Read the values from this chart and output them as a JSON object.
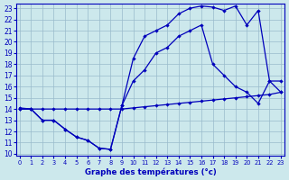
{
  "title": "Graphe des températures (°c)",
  "bg_color": "#cce8ec",
  "line_color": "#0000bb",
  "grid_color": "#99bbcc",
  "xlim": [
    -0.3,
    23.3
  ],
  "ylim": [
    9.8,
    23.4
  ],
  "xticks": [
    0,
    1,
    2,
    3,
    4,
    5,
    6,
    7,
    8,
    9,
    10,
    11,
    12,
    13,
    14,
    15,
    16,
    17,
    18,
    19,
    20,
    21,
    22,
    23
  ],
  "yticks": [
    10,
    11,
    12,
    13,
    14,
    15,
    16,
    17,
    18,
    19,
    20,
    21,
    22,
    23
  ],
  "line1_x": [
    0,
    1,
    2,
    3,
    4,
    5,
    6,
    7,
    8,
    9,
    10,
    11,
    12,
    13,
    14,
    15,
    16,
    17,
    18,
    19,
    20,
    21,
    22,
    23
  ],
  "line1_y": [
    14.0,
    14.0,
    14.0,
    14.0,
    14.0,
    14.0,
    14.0,
    14.0,
    14.0,
    14.0,
    14.1,
    14.2,
    14.3,
    14.4,
    14.5,
    14.6,
    14.7,
    14.8,
    14.9,
    15.0,
    15.1,
    15.2,
    15.3,
    15.5
  ],
  "line2_x": [
    0,
    1,
    2,
    3,
    4,
    5,
    6,
    7,
    8,
    9,
    10,
    11,
    12,
    13,
    14,
    15,
    16,
    17,
    18,
    19,
    20,
    21,
    22,
    23
  ],
  "line2_y": [
    14.0,
    14.0,
    13.0,
    13.0,
    12.2,
    11.5,
    11.2,
    10.5,
    10.4,
    14.3,
    16.5,
    17.5,
    19.0,
    19.5,
    20.5,
    21.0,
    21.5,
    18.0,
    17.0,
    16.0,
    15.5,
    14.5,
    16.5,
    16.5
  ],
  "line3_x": [
    0,
    1,
    2,
    3,
    4,
    5,
    6,
    7,
    8,
    9,
    10,
    11,
    12,
    13,
    14,
    15,
    16,
    17,
    18,
    19,
    20,
    21,
    22,
    23
  ],
  "line3_y": [
    14.1,
    14.0,
    13.0,
    13.0,
    12.2,
    11.5,
    11.2,
    10.5,
    10.4,
    14.3,
    18.5,
    20.5,
    21.0,
    21.5,
    22.5,
    23.0,
    23.2,
    23.1,
    22.8,
    23.2,
    21.5,
    22.8,
    16.5,
    15.5
  ]
}
